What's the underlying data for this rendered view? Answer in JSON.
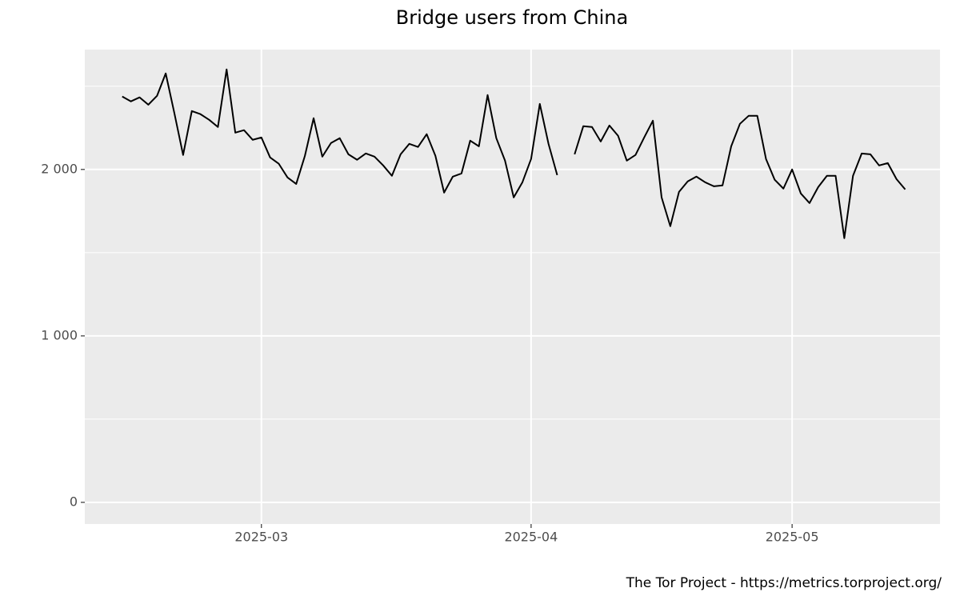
{
  "chart_data": {
    "type": "line",
    "title": "Bridge users from China",
    "caption": "The Tor Project - https://metrics.torproject.org/",
    "series": [
      {
        "name": "users",
        "color": "#000000",
        "values": [
          2438,
          2409,
          2433,
          2389,
          2442,
          2577,
          2337,
          2087,
          2351,
          2332,
          2298,
          2255,
          2601,
          2221,
          2236,
          2178,
          2192,
          2072,
          2034,
          1952,
          1913,
          2082,
          2308,
          2077,
          2159,
          2188,
          2091,
          2058,
          2096,
          2077,
          2024,
          1962,
          2091,
          2154,
          2135,
          2212,
          2082,
          1861,
          1957,
          1976,
          2173,
          2139,
          2447,
          2188,
          2053,
          1832,
          1923,
          2063,
          2394,
          2154,
          1966,
          null,
          2091,
          2260,
          2255,
          2168,
          2264,
          2202,
          2053,
          2087,
          2192,
          2293,
          1832,
          1659,
          1865,
          1928,
          1957,
          1923,
          1899,
          1904,
          2139,
          2274,
          2322,
          2322,
          2063,
          1938,
          1885,
          2000,
          1856,
          1798,
          1894,
          1962,
          1962,
          1587,
          1962,
          2096,
          2091,
          2024,
          2038,
          1942,
          1880
        ]
      }
    ],
    "xlim": [
      -4.3,
      94
    ],
    "xticks": [
      {
        "value": 16,
        "label": "2025-03"
      },
      {
        "value": 47,
        "label": "2025-04"
      },
      {
        "value": 77,
        "label": "2025-05"
      }
    ],
    "ylim": [
      -130,
      2720
    ],
    "yticks": [
      0,
      {
        "value": 1000,
        "label": "1 000"
      },
      {
        "value": 2000,
        "label": "2 000"
      }
    ],
    "yminor": [
      500,
      1500,
      2500
    ],
    "grid": true
  }
}
